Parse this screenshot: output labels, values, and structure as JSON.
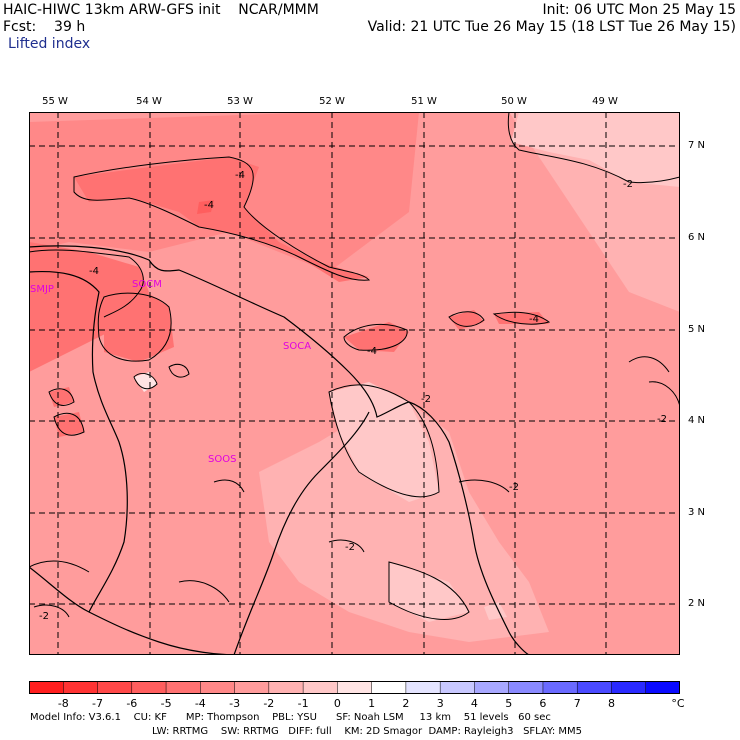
{
  "header": {
    "title_left": "HAIC-HIWC 13km ARW-GFS init    NCAR/MMM",
    "fcst": "Fcst:    39 h",
    "field": "Lifted index",
    "init": "Init: 06 UTC Mon 25 May 15",
    "valid": "Valid: 21 UTC Tue 26 May 15 (18 LST Tue 26 May 15)"
  },
  "map": {
    "lon_labels": [
      "55 W",
      "54 W",
      "53 W",
      "52 W",
      "51 W",
      "50 W",
      "49 W"
    ],
    "lat_labels": [
      "7 N",
      "6 N",
      "5 N",
      "4 N",
      "3 N",
      "2 N"
    ],
    "stations": [
      "SMJP",
      "SOCM",
      "SOCA",
      "SOOS"
    ],
    "contour_labels": [
      "-4",
      "-4",
      "-4",
      "-4",
      "-4",
      "-2",
      "-2",
      "-2",
      "-2",
      "-2",
      "-2"
    ]
  },
  "colorbar": {
    "ticks": [
      "-8",
      "-7",
      "-6",
      "-5",
      "-4",
      "-3",
      "-2",
      "-1",
      "0",
      "1",
      "2",
      "3",
      "4",
      "5",
      "6",
      "7",
      "8"
    ],
    "unit": "°C",
    "colors": [
      "#ff1e1e",
      "#ff3333",
      "#ff4848",
      "#ff5e5e",
      "#ff7272",
      "#ff8888",
      "#ff9c9c",
      "#ffb2b2",
      "#ffc8c8",
      "#ffe4e4",
      "#ffffff",
      "#e4e4ff",
      "#c8c8ff",
      "#a8a8ff",
      "#8a8aff",
      "#6a6aff",
      "#4a4aff",
      "#2a2aff",
      "#0a0aff"
    ]
  },
  "footer": {
    "line1": "Model Info: V3.6.1    CU: KF      MP: Thompson    PBL: YSU      SF: Noah LSM     13 km    51 levels   60 sec",
    "line2": "LW: RRTMG    SW: RRTMG   DIFF: full    KM: 2D Smagor  DAMP: Rayleigh3   SFLAY: MM5"
  },
  "colors": {
    "station": "#e000e0",
    "field_label": "#1f2f8f"
  }
}
